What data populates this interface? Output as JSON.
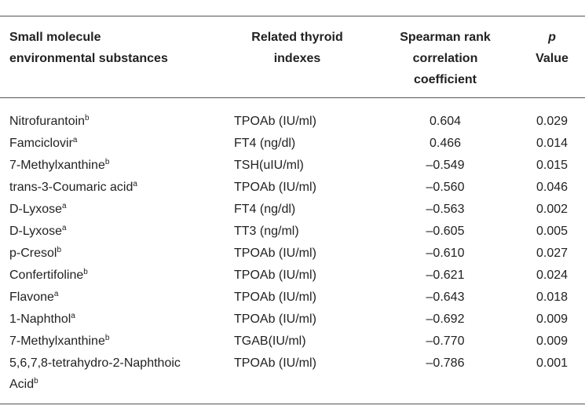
{
  "header": {
    "substance": "Small molecule environmental substances",
    "index": "Related thyroid indexes",
    "coefficient": "Spearman rank correlation coefficient",
    "p_symbol": "p",
    "p_label": "Value"
  },
  "table": {
    "rows": [
      {
        "substance": "Nitrofurantoin",
        "note": "b",
        "index": "TPOAb (IU/ml)",
        "coefficient": "0.604",
        "p": "0.029"
      },
      {
        "substance": "Famciclovir",
        "note": "a",
        "index": "FT4 (ng/dl)",
        "coefficient": "0.466",
        "p": "0.014"
      },
      {
        "substance": "7-Methylxanthine",
        "note": "b",
        "index": "TSH(uIU/ml)",
        "coefficient": "–0.549",
        "p": "0.015"
      },
      {
        "substance": "trans-3-Coumaric acid",
        "note": "a",
        "index": "TPOAb (IU/ml)",
        "coefficient": "–0.560",
        "p": "0.046"
      },
      {
        "substance": "D-Lyxose",
        "note": "a",
        "index": "FT4 (ng/dl)",
        "coefficient": "–0.563",
        "p": "0.002"
      },
      {
        "substance": "D-Lyxose",
        "note": "a",
        "index": "TT3 (ng/ml)",
        "coefficient": "–0.605",
        "p": "0.005"
      },
      {
        "substance": "p-Cresol",
        "note": "b",
        "index": "TPOAb (IU/ml)",
        "coefficient": "–0.610",
        "p": "0.027"
      },
      {
        "substance": "Confertifoline",
        "note": "b",
        "index": "TPOAb (IU/ml)",
        "coefficient": "–0.621",
        "p": "0.024"
      },
      {
        "substance": "Flavone",
        "note": "a",
        "index": "TPOAb (IU/ml)",
        "coefficient": "–0.643",
        "p": "0.018"
      },
      {
        "substance": "1-Naphthol",
        "note": "a",
        "index": "TPOAb (IU/ml)",
        "coefficient": "–0.692",
        "p": "0.009"
      },
      {
        "substance": "7-Methylxanthine",
        "note": "b",
        "index": "TGAB(IU/ml)",
        "coefficient": "–0.770",
        "p": "0.009"
      },
      {
        "substance": "5,6,7,8-tetrahydro-2-Naphthoic Acid",
        "note": "b",
        "index": "TPOAb (IU/ml)",
        "coefficient": "–0.786",
        "p": "0.001"
      }
    ]
  }
}
